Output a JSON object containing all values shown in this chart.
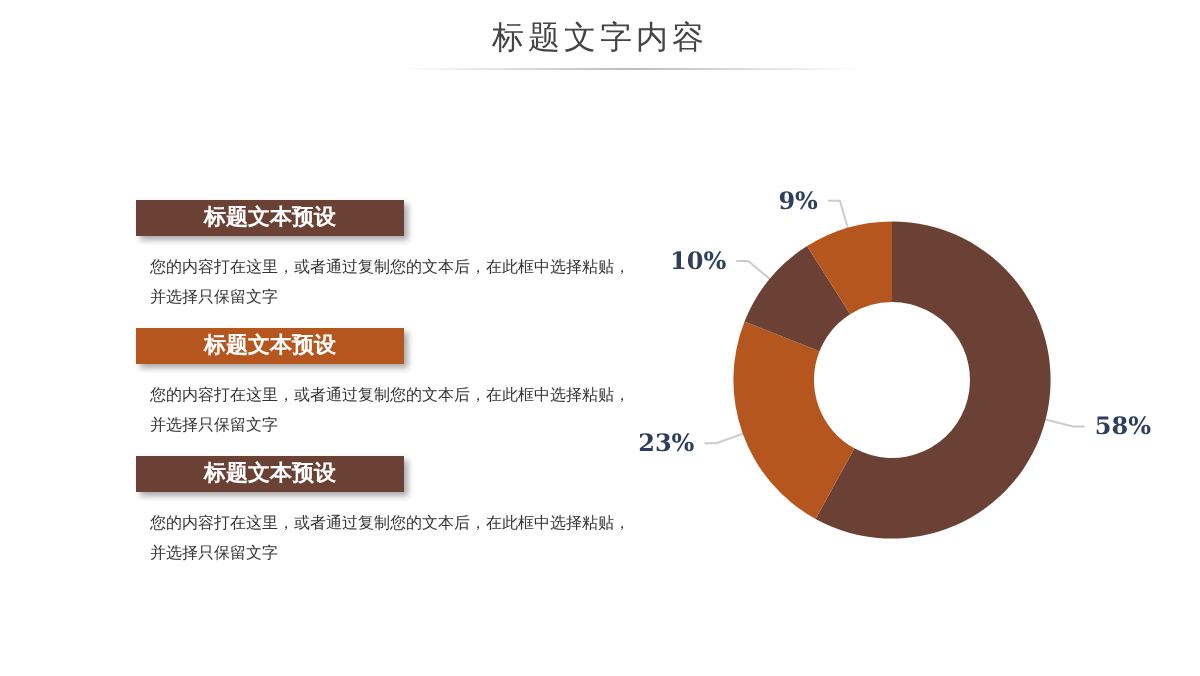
{
  "chart_data": [
    {
      "type": "other",
      "title": "标题文字内容",
      "categories": [
        "标题文本预设",
        "标题文本预设",
        "标题文本预设"
      ],
      "colors": [
        "#6b4035",
        "#b5561f",
        "#6b4035"
      ],
      "annotations": [
        "您的内容打在这里，或者通过复制您的文本后，在此框中选择粘贴，并选择只保留文字",
        "您的内容打在这里，或者通过复制您的文本后，在此框中选择粘贴，并选择只保留文字",
        "您的内容打在这里，或者通过复制您的文本后，在此框中选择粘贴，并选择只保留文字"
      ]
    },
    {
      "type": "donut",
      "categories": [
        null,
        null,
        null,
        null
      ],
      "values": [
        58,
        23,
        10,
        9
      ],
      "colors": [
        "#6b4035",
        "#b5561f",
        "#6b4035",
        "#b5561f"
      ],
      "value_labels": [
        "58%",
        "23%",
        "10%",
        "9%"
      ]
    }
  ]
}
